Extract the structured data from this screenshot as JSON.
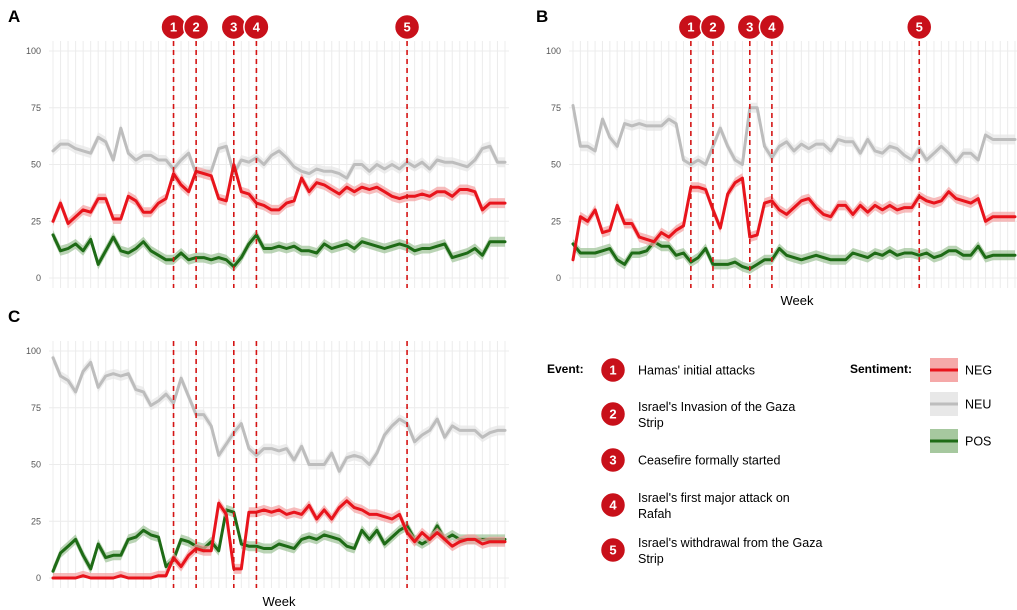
{
  "chart_data": [
    {
      "panel": "A",
      "type": "line",
      "xlabel": "",
      "ylim": [
        0,
        100
      ],
      "yticks": [
        0,
        25,
        50,
        75,
        100
      ],
      "n_weeks": 61,
      "event_weeks": [
        16,
        19,
        24,
        27,
        47
      ],
      "series": [
        {
          "name": "NEG",
          "values": [
            25,
            33,
            24,
            27,
            30,
            29,
            35,
            35,
            26,
            26,
            36,
            34,
            29,
            29,
            33,
            35,
            46,
            41,
            38,
            47,
            46,
            45,
            35,
            34,
            50,
            38,
            37,
            33,
            32,
            30,
            30,
            33,
            34,
            44,
            38,
            42,
            41,
            39,
            37,
            40,
            38,
            40,
            39,
            40,
            38,
            36,
            35,
            36,
            36,
            37,
            36,
            38,
            38,
            36,
            39,
            39,
            38,
            30,
            33,
            33,
            33
          ]
        },
        {
          "name": "NEU",
          "values": [
            56,
            59,
            59,
            57,
            56,
            55,
            62,
            60,
            52,
            66,
            55,
            52,
            54,
            54,
            52,
            52,
            48,
            52,
            55,
            46,
            47,
            47,
            57,
            58,
            46,
            52,
            51,
            53,
            50,
            54,
            56,
            53,
            49,
            47,
            46,
            48,
            47,
            47,
            46,
            44,
            50,
            50,
            47,
            50,
            48,
            50,
            48,
            51,
            49,
            51,
            48,
            52,
            51,
            51,
            50,
            49,
            52,
            57,
            58,
            51,
            51
          ]
        },
        {
          "name": "POS",
          "values": [
            19,
            12,
            13,
            15,
            12,
            17,
            6,
            12,
            18,
            12,
            11,
            13,
            16,
            12,
            10,
            8,
            8,
            11,
            8,
            9,
            9,
            8,
            9,
            8,
            5,
            9,
            15,
            19,
            13,
            13,
            14,
            13,
            14,
            12,
            12,
            11,
            15,
            13,
            14,
            15,
            13,
            16,
            15,
            14,
            13,
            14,
            15,
            14,
            12,
            13,
            13,
            14,
            15,
            9,
            10,
            11,
            13,
            10,
            16,
            16,
            16
          ]
        }
      ]
    },
    {
      "panel": "B",
      "type": "line",
      "xlabel": "Week",
      "ylim": [
        0,
        100
      ],
      "yticks": [
        0,
        25,
        50,
        75,
        100
      ],
      "n_weeks": 61,
      "event_weeks": [
        16,
        19,
        24,
        27,
        47
      ],
      "series": [
        {
          "name": "NEG",
          "values": [
            8,
            27,
            25,
            30,
            20,
            21,
            32,
            24,
            24,
            18,
            17,
            16,
            20,
            18,
            21,
            23,
            40,
            40,
            39,
            30,
            22,
            37,
            42,
            44,
            18,
            19,
            33,
            34,
            30,
            28,
            31,
            34,
            35,
            31,
            28,
            27,
            32,
            32,
            28,
            32,
            29,
            32,
            30,
            32,
            30,
            31,
            31,
            36,
            34,
            33,
            34,
            38,
            35,
            34,
            33,
            35,
            25,
            27,
            27,
            27,
            27
          ]
        },
        {
          "name": "NEU",
          "values": [
            76,
            58,
            58,
            56,
            70,
            62,
            58,
            68,
            67,
            68,
            67,
            67,
            67,
            70,
            68,
            52,
            50,
            52,
            50,
            58,
            66,
            58,
            52,
            50,
            75,
            75,
            58,
            53,
            58,
            60,
            56,
            59,
            57,
            59,
            59,
            56,
            61,
            60,
            60,
            55,
            61,
            56,
            55,
            58,
            57,
            54,
            52,
            57,
            52,
            55,
            58,
            55,
            51,
            55,
            55,
            52,
            63,
            61,
            61,
            61,
            61
          ]
        },
        {
          "name": "POS",
          "values": [
            15,
            11,
            11,
            11,
            12,
            13,
            8,
            6,
            11,
            11,
            12,
            16,
            14,
            14,
            10,
            11,
            7,
            9,
            13,
            6,
            6,
            6,
            7,
            5,
            4,
            6,
            8,
            8,
            13,
            10,
            9,
            8,
            9,
            10,
            9,
            8,
            8,
            8,
            11,
            10,
            9,
            11,
            10,
            12,
            10,
            11,
            11,
            10,
            11,
            9,
            10,
            12,
            12,
            10,
            10,
            14,
            9,
            10,
            10,
            10,
            10
          ]
        }
      ]
    },
    {
      "panel": "C",
      "type": "line",
      "xlabel": "Week",
      "ylim": [
        0,
        100
      ],
      "yticks": [
        0,
        25,
        50,
        75,
        100
      ],
      "n_weeks": 61,
      "event_weeks": [
        16,
        19,
        24,
        27,
        47
      ],
      "series": [
        {
          "name": "NEG",
          "values": [
            0,
            0,
            0,
            0,
            1,
            0,
            0,
            0,
            0,
            1,
            0,
            0,
            0,
            0,
            1,
            1,
            9,
            5,
            10,
            13,
            12,
            12,
            33,
            28,
            4,
            4,
            29,
            29,
            30,
            29,
            30,
            28,
            29,
            28,
            32,
            26,
            30,
            26,
            31,
            34,
            31,
            30,
            28,
            28,
            27,
            26,
            28,
            20,
            16,
            20,
            17,
            20,
            17,
            14,
            16,
            17,
            17,
            15,
            16,
            16,
            16
          ]
        },
        {
          "name": "NEU",
          "values": [
            97,
            89,
            87,
            82,
            91,
            95,
            84,
            89,
            90,
            89,
            90,
            83,
            82,
            76,
            78,
            81,
            77,
            88,
            80,
            72,
            72,
            67,
            54,
            59,
            64,
            68,
            57,
            54,
            57,
            57,
            56,
            57,
            52,
            58,
            50,
            50,
            50,
            55,
            47,
            53,
            54,
            53,
            50,
            55,
            63,
            67,
            70,
            68,
            60,
            63,
            65,
            70,
            62,
            67,
            65,
            65,
            65,
            62,
            64,
            65,
            65
          ]
        },
        {
          "name": "POS",
          "values": [
            3,
            11,
            14,
            17,
            10,
            4,
            15,
            9,
            10,
            10,
            17,
            18,
            21,
            19,
            18,
            5,
            8,
            17,
            16,
            14,
            13,
            16,
            12,
            30,
            29,
            15,
            14,
            14,
            13,
            13,
            15,
            14,
            13,
            17,
            18,
            17,
            19,
            18,
            17,
            14,
            13,
            21,
            17,
            21,
            15,
            18,
            21,
            23,
            17,
            15,
            17,
            23,
            17,
            19,
            17,
            17,
            17,
            17,
            17,
            17,
            17
          ]
        }
      ]
    }
  ],
  "panels": {
    "A": {
      "letter": "A"
    },
    "B": {
      "letter": "B",
      "xlabel": "Week"
    },
    "C": {
      "letter": "C",
      "xlabel": "Week"
    }
  },
  "legend": {
    "event_title": "Event:",
    "events": [
      {
        "num": "1",
        "lines": [
          "Hamas' initial attacks"
        ]
      },
      {
        "num": "2",
        "lines": [
          "Israel's Invasion of the Gaza",
          "Strip"
        ]
      },
      {
        "num": "3",
        "lines": [
          "Ceasefire formally started"
        ]
      },
      {
        "num": "4",
        "lines": [
          "Israel's first major attack on",
          "Rafah"
        ]
      },
      {
        "num": "5",
        "lines": [
          "Israel's withdrawal from the Gaza",
          "Strip"
        ]
      }
    ],
    "sentiment_title": "Sentiment:",
    "sentiments": [
      {
        "name": "NEG",
        "color": "#e8141c",
        "fill": "#f4a0a0"
      },
      {
        "name": "NEU",
        "color": "#bdbdbd",
        "fill": "#e6e6e6"
      },
      {
        "name": "POS",
        "color": "#1e6b16",
        "fill": "#9cc295"
      }
    ]
  },
  "colors": {
    "NEG": "#e8141c",
    "NEU": "#bdbdbd",
    "POS": "#1e6b16",
    "event_line": "#d41414",
    "marker": "#c8101a",
    "grid": "#ececec"
  }
}
